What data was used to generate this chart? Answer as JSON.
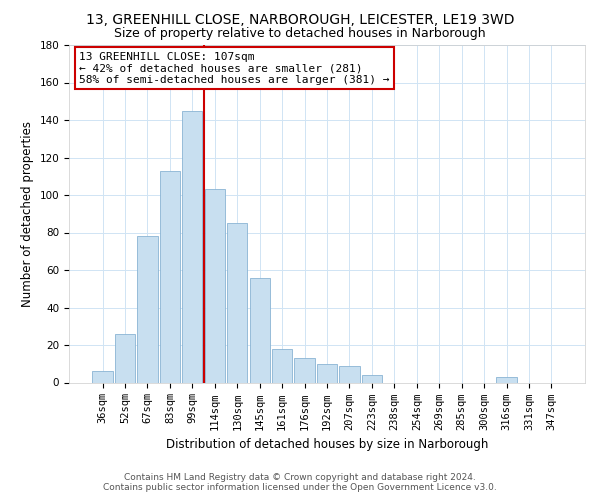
{
  "title": "13, GREENHILL CLOSE, NARBOROUGH, LEICESTER, LE19 3WD",
  "subtitle": "Size of property relative to detached houses in Narborough",
  "xlabel": "Distribution of detached houses by size in Narborough",
  "ylabel": "Number of detached properties",
  "bar_labels": [
    "36sqm",
    "52sqm",
    "67sqm",
    "83sqm",
    "99sqm",
    "114sqm",
    "130sqm",
    "145sqm",
    "161sqm",
    "176sqm",
    "192sqm",
    "207sqm",
    "223sqm",
    "238sqm",
    "254sqm",
    "269sqm",
    "285sqm",
    "300sqm",
    "316sqm",
    "331sqm",
    "347sqm"
  ],
  "bar_values": [
    6,
    26,
    78,
    113,
    145,
    103,
    85,
    56,
    18,
    13,
    10,
    9,
    4,
    0,
    0,
    0,
    0,
    0,
    3,
    0,
    0
  ],
  "bar_color": "#c8dff0",
  "bar_edge_color": "#8ab4d4",
  "vline_color": "#cc0000",
  "annotation_text": "13 GREENHILL CLOSE: 107sqm\n← 42% of detached houses are smaller (281)\n58% of semi-detached houses are larger (381) →",
  "annotation_box_color": "#ffffff",
  "annotation_box_edge": "#cc0000",
  "ylim": [
    0,
    180
  ],
  "yticks": [
    0,
    20,
    40,
    60,
    80,
    100,
    120,
    140,
    160,
    180
  ],
  "footer_line1": "Contains HM Land Registry data © Crown copyright and database right 2024.",
  "footer_line2": "Contains public sector information licensed under the Open Government Licence v3.0.",
  "background_color": "#ffffff",
  "grid_color": "#d0e4f4",
  "title_fontsize": 10,
  "subtitle_fontsize": 9,
  "axis_label_fontsize": 8.5,
  "tick_fontsize": 7.5,
  "footer_fontsize": 6.5,
  "annot_fontsize": 8
}
